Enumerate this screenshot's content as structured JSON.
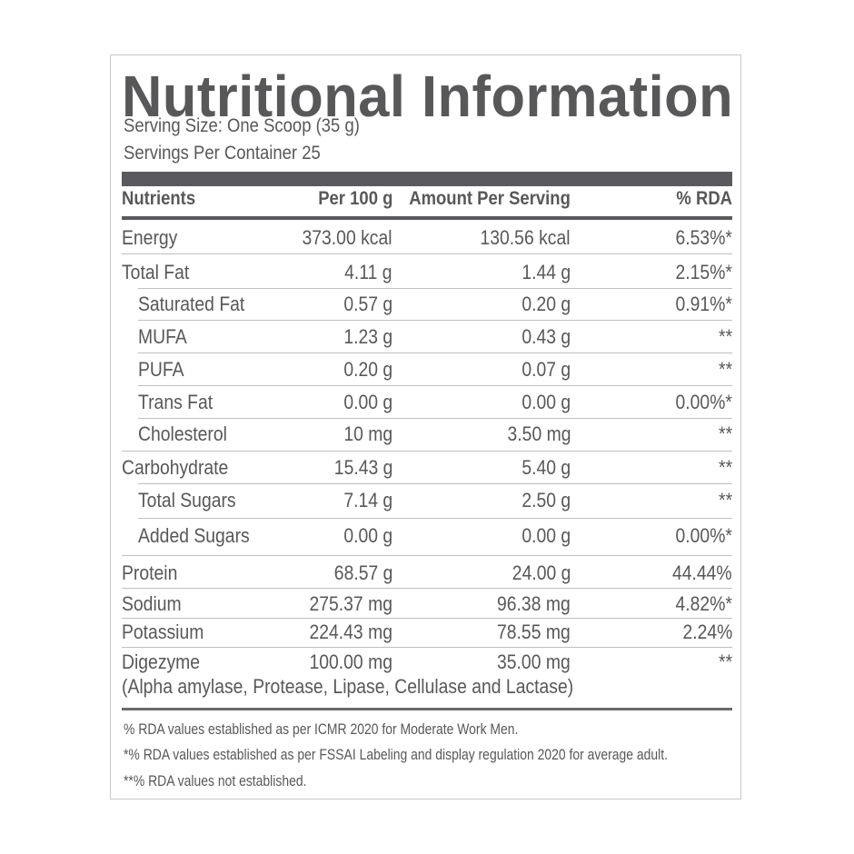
{
  "label": {
    "title": "Nutritional Information",
    "serving_size": "Serving Size: One Scoop (35 g)",
    "servings_per_container": "Servings Per Container 25"
  },
  "table": {
    "headers": [
      "Nutrients",
      "Per 100 g",
      "Amount Per Serving",
      "% RDA"
    ],
    "rows": [
      {
        "nutrient": "Energy",
        "per100": "373.00 kcal",
        "serving": "130.56 kcal",
        "rda": "6.53%*",
        "indent": false
      },
      {
        "nutrient": "Total Fat",
        "per100": "4.11 g",
        "serving": "1.44 g",
        "rda": "2.15%*",
        "indent": false
      },
      {
        "nutrient": "Saturated Fat",
        "per100": "0.57 g",
        "serving": "0.20 g",
        "rda": "0.91%*",
        "indent": true
      },
      {
        "nutrient": "MUFA",
        "per100": "1.23 g",
        "serving": "0.43 g",
        "rda": "**",
        "indent": true
      },
      {
        "nutrient": "PUFA",
        "per100": "0.20 g",
        "serving": "0.07 g",
        "rda": "**",
        "indent": true
      },
      {
        "nutrient": "Trans Fat",
        "per100": "0.00 g",
        "serving": "0.00 g",
        "rda": "0.00%*",
        "indent": true
      },
      {
        "nutrient": "Cholesterol",
        "per100": "10 mg",
        "serving": "3.50 mg",
        "rda": "**",
        "indent": true
      },
      {
        "nutrient": "Carbohydrate",
        "per100": "15.43 g",
        "serving": "5.40 g",
        "rda": "**",
        "indent": false
      },
      {
        "nutrient": "Total Sugars",
        "per100": "7.14 g",
        "serving": "2.50 g",
        "rda": "**",
        "indent": true
      },
      {
        "nutrient": "Added Sugars",
        "per100": "0.00 g",
        "serving": "0.00 g",
        "rda": "0.00%*",
        "indent": true
      },
      {
        "nutrient": "Protein",
        "per100": "68.57 g",
        "serving": "24.00 g",
        "rda": "44.44%",
        "indent": false
      },
      {
        "nutrient": "Sodium",
        "per100": "275.37 mg",
        "serving": "96.38 mg",
        "rda": "4.82%*",
        "indent": false
      },
      {
        "nutrient": "Potassium",
        "per100": "224.43 mg",
        "serving": "78.55 mg",
        "rda": "2.24%",
        "indent": false
      },
      {
        "nutrient": "Digezyme",
        "per100": "100.00 mg",
        "serving": "35.00 mg",
        "rda": "**",
        "indent": false
      }
    ],
    "digezyme_note": "(Alpha amylase, Protease, Lipase, Cellulase and Lactase)"
  },
  "footnotes": [
    "% RDA values established as per ICMR 2020 for Moderate Work Men.",
    "*% RDA values established as per FSSAI Labeling and display regulation 2020 for average adult.",
    "**% RDA values not established."
  ],
  "colors": {
    "text": "#58585a",
    "bar": "#5a5a5e",
    "rule": "#c0c0c0",
    "border": "#c8c8c8"
  }
}
